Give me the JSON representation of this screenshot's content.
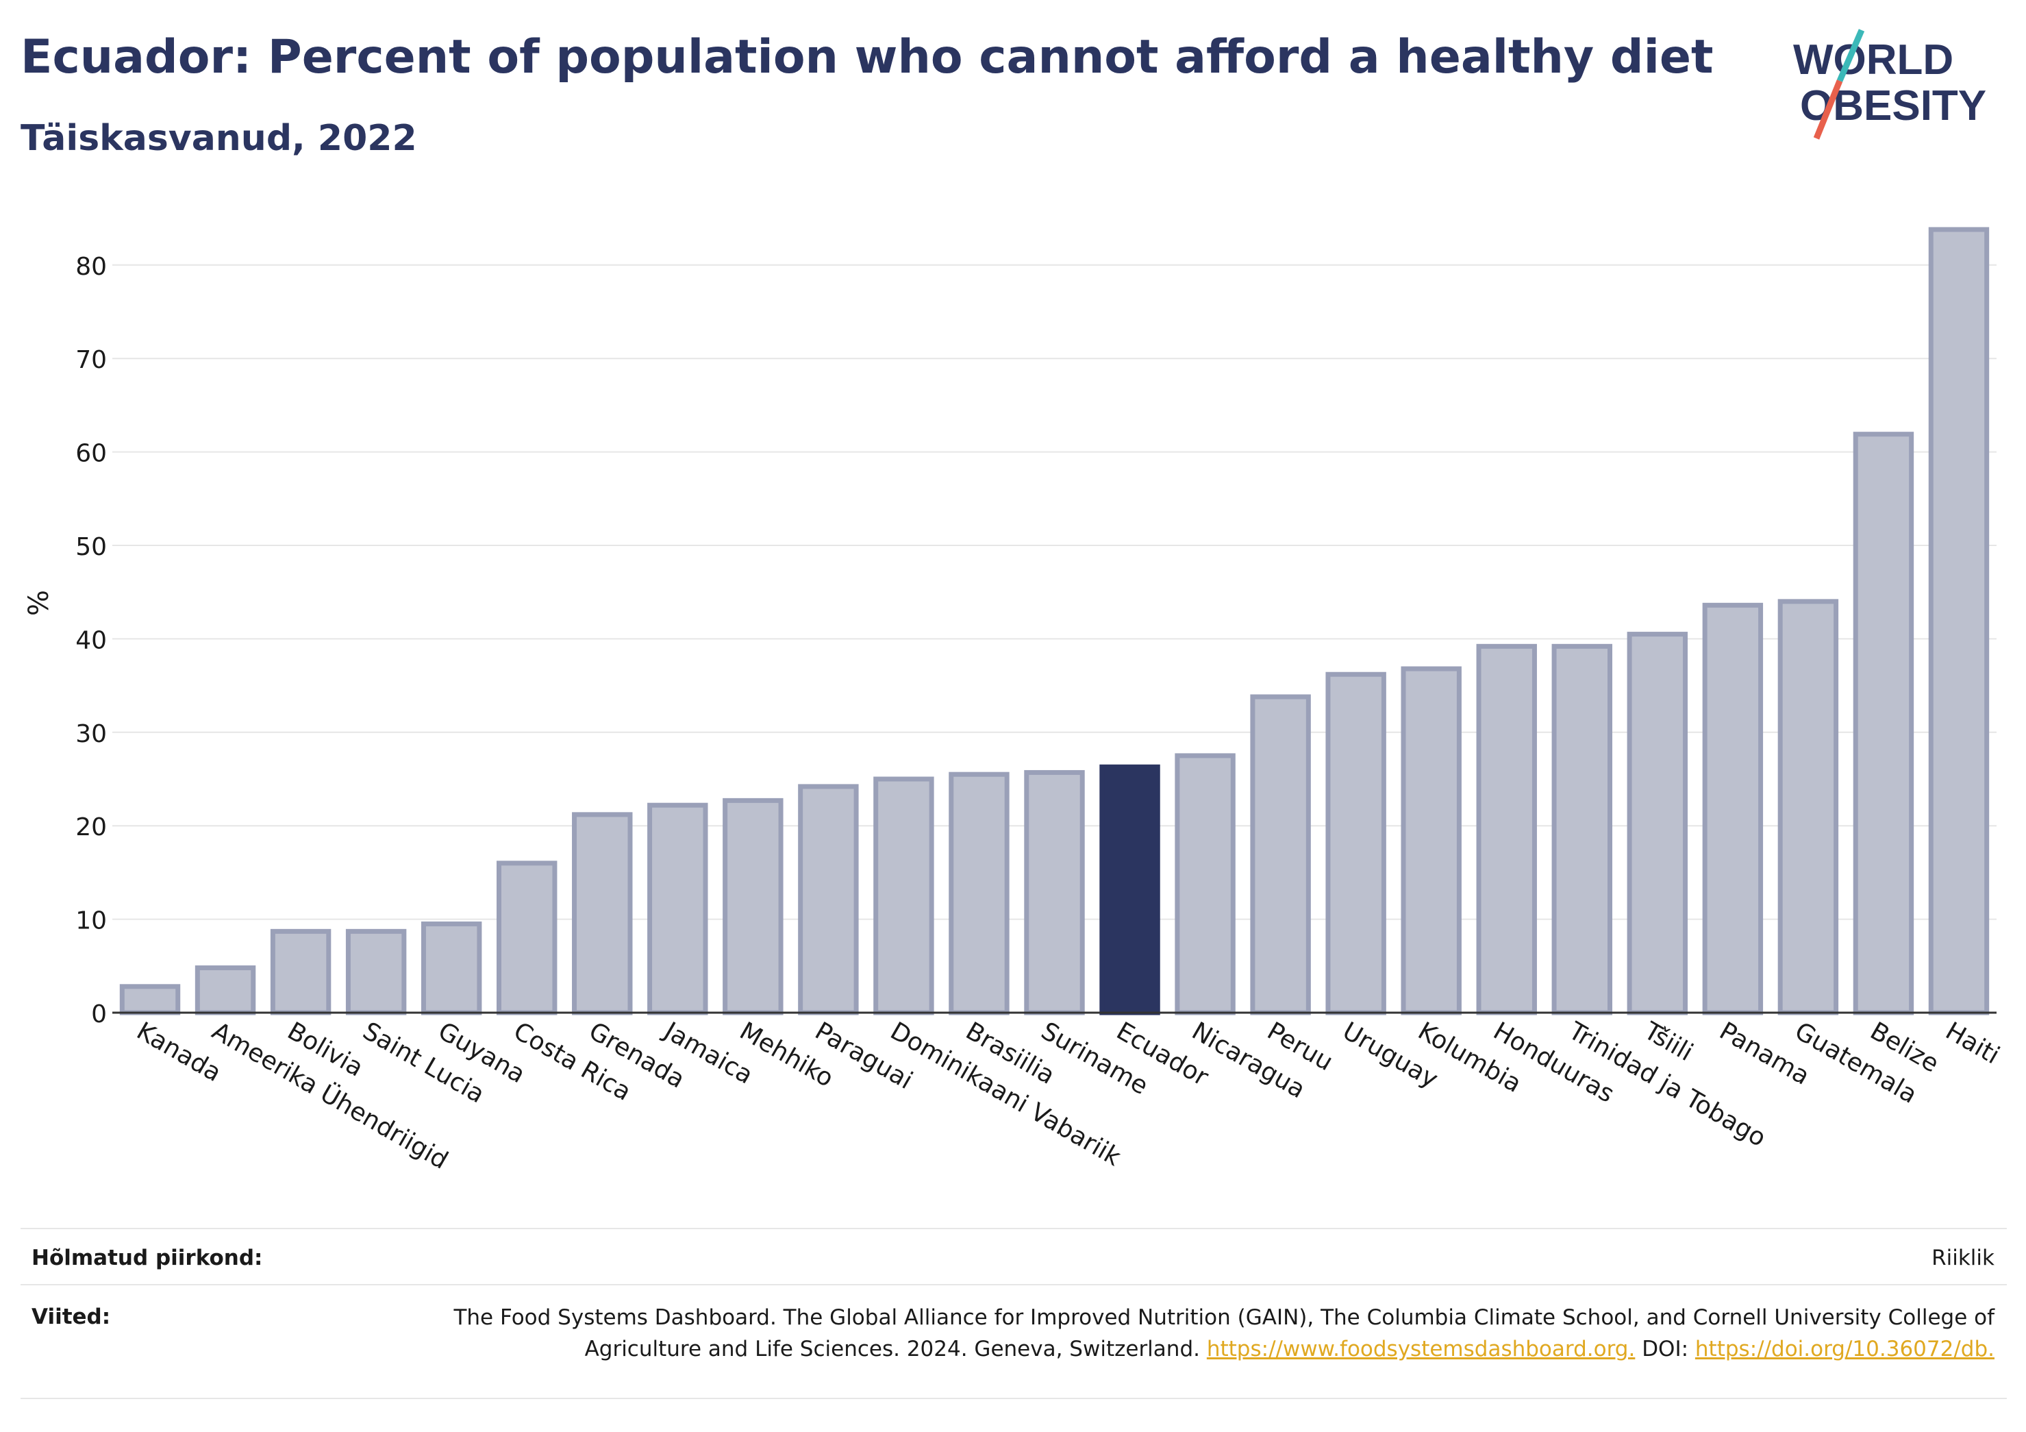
{
  "header": {
    "title": "Ecuador: Percent of population who cannot afford a healthy diet",
    "subtitle": "Täiskasvanud, 2022"
  },
  "logo": {
    "line1": "WORLD",
    "line2": "OBESITY",
    "accent_teal": "#3bb8b8",
    "accent_red": "#e8604c",
    "text_color": "#2b3560"
  },
  "colors": {
    "bar": "#bcc0ce",
    "bar_stroke": "#9aa0b8",
    "highlight": "#2b3560",
    "grid": "#e6e6e6",
    "axis": "#333333"
  },
  "chart_data": {
    "type": "bar",
    "ylabel": "%",
    "ylim": [
      0,
      85
    ],
    "yticks": [
      "0",
      "10",
      "20",
      "30",
      "40",
      "50",
      "60",
      "70",
      "80"
    ],
    "grid": true,
    "highlight": "Ecuador",
    "categories": [
      "Kanada",
      "Ameerika Ühendriigid",
      "Bolivia",
      "Saint Lucia",
      "Guyana",
      "Costa Rica",
      "Grenada",
      "Jamaica",
      "Mehhiko",
      "Paraguai",
      "Dominikaani Vabariik",
      "Brasiilia",
      "Suriname",
      "Ecuador",
      "Nicaragua",
      "Peruu",
      "Uruguay",
      "Kolumbia",
      "Honduuras",
      "Trinidad ja Tobago",
      "Tšiili",
      "Panama",
      "Guatemala",
      "Belize",
      "Haiti"
    ],
    "values": [
      2.8,
      4.8,
      8.7,
      8.7,
      9.5,
      16.0,
      21.2,
      22.2,
      22.7,
      24.2,
      25.0,
      25.5,
      25.7,
      26.3,
      27.5,
      33.8,
      36.2,
      36.8,
      39.2,
      39.2,
      40.5,
      43.6,
      44.0,
      61.9,
      83.8
    ]
  },
  "footer": {
    "region_label": "Hõlmatud piirkond:",
    "region_value": "Riiklik",
    "refs_label": "Viited:",
    "refs_text": "The Food Systems Dashboard. The Global Alliance for Improved Nutrition (GAIN), The Columbia Climate School, and Cornell University College of Agriculture and Life Sciences. 2024. Geneva, Switzerland.",
    "refs_link1": "https://www.foodsystemsdashboard.org.",
    "refs_doi_label": "DOI:",
    "refs_link2": "https://doi.org/10.36072/db."
  }
}
